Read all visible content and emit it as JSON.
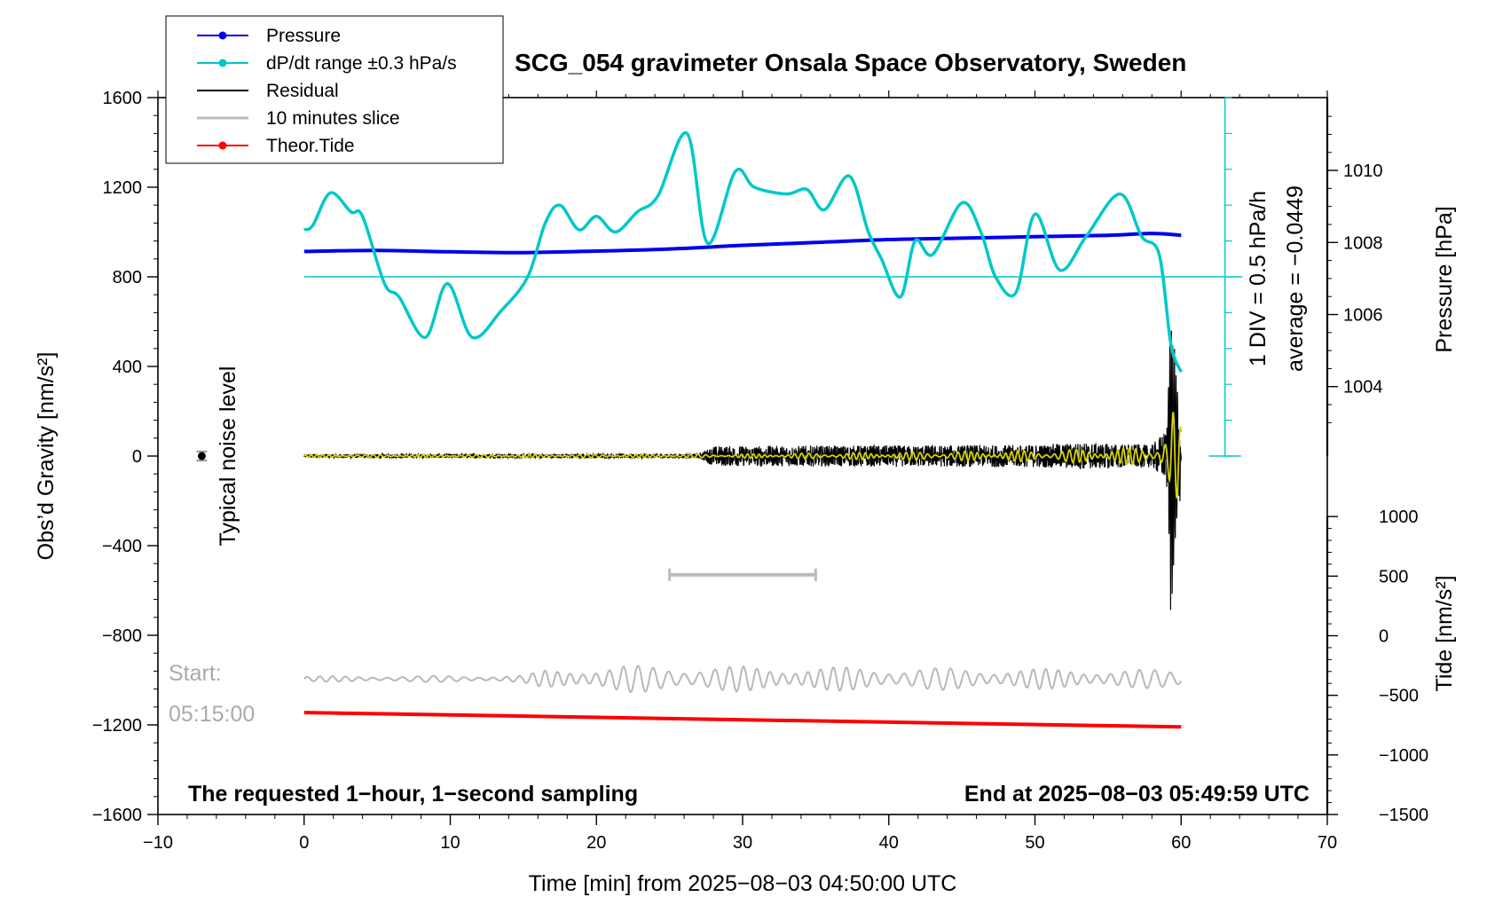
{
  "chart_data": {
    "type": "line",
    "title": "SCG_054 gravimeter Onsala Space Observatory, Sweden",
    "xlabel": "Time [min] from 2025−08−03 04:50:00 UTC",
    "ylabel_left": "Obs’d Gravity [nm/s²]",
    "ylabel_right_top": "Pressure [hPa]",
    "ylabel_right_bottom": "Tide [nm/s²]",
    "xlim": [
      -10,
      70
    ],
    "ylim_left": [
      -1600,
      1600
    ],
    "x_ticks": [
      "−10",
      "0",
      "10",
      "20",
      "30",
      "40",
      "50",
      "60",
      "70"
    ],
    "y_ticks_left": [
      "1600",
      "1200",
      "800",
      "400",
      "0",
      "−400",
      "−800",
      "−1200",
      "−1600"
    ],
    "pressure_ticks": [
      "1010",
      "1008",
      "1006",
      "1004"
    ],
    "tide_ticks": [
      "1000",
      "500",
      "0",
      "−500",
      "−1000",
      "−1500"
    ],
    "legend": [
      {
        "label": "Pressure",
        "color": "#0000ee",
        "marker": true
      },
      {
        "label": "dP/dt range ±0.3 hPa/s",
        "color": "#00c8c8",
        "marker": true
      },
      {
        "label": "Residual",
        "color": "#000000",
        "marker": false
      },
      {
        "label": "10 minutes slice",
        "color": "#bbbbbb",
        "marker": false
      },
      {
        "label": "Theor.Tide",
        "color": "#ff0000",
        "marker": true
      }
    ],
    "annotations": {
      "noise_label": "Typical noise level",
      "div_label": "1 DIV = 0.5 hPa/h",
      "average_label": "average = −0.0449",
      "start_label": "Start:",
      "start_time": "05:15:00",
      "bottom_left": "The requested 1−hour, 1−second sampling",
      "bottom_right": "End at 2025−08−03 05:49:59 UTC"
    },
    "series": [
      {
        "name": "Pressure",
        "axis": "pressure_hPa",
        "x": [
          0,
          5,
          10,
          15,
          20,
          25,
          30,
          35,
          40,
          45,
          50,
          55,
          58,
          60
        ],
        "values": [
          1007.75,
          1007.78,
          1007.74,
          1007.72,
          1007.76,
          1007.82,
          1007.92,
          1008.0,
          1008.08,
          1008.12,
          1008.16,
          1008.2,
          1008.25,
          1008.2
        ]
      },
      {
        "name": "dP/dt",
        "axis": "gravity_nm_s2",
        "x": [
          0,
          0.6,
          1.8,
          3.2,
          4.0,
          5.5,
          6.5,
          8.3,
          9.8,
          11.5,
          13.5,
          15.3,
          16.5,
          17.5,
          18.8,
          20.0,
          21.3,
          22.8,
          24.2,
          26.2,
          27.6,
          29.5,
          30.8,
          33.0,
          34.4,
          35.6,
          37.3,
          38.6,
          39.5,
          40.8,
          41.8,
          43.0,
          45.0,
          46.3,
          47.3,
          48.7,
          50.0,
          51.7,
          53.5,
          55.8,
          57.3,
          58.5,
          59.3,
          60
        ],
        "values": [
          1010,
          1030,
          1175,
          1090,
          1070,
          770,
          710,
          530,
          770,
          530,
          650,
          800,
          1040,
          1120,
          1010,
          1070,
          1000,
          1090,
          1160,
          1440,
          950,
          1270,
          1200,
          1170,
          1190,
          1100,
          1250,
          1000,
          880,
          710,
          960,
          900,
          1130,
          1000,
          800,
          730,
          1080,
          830,
          980,
          1170,
          980,
          900,
          500,
          375
        ]
      },
      {
        "name": "Residual",
        "axis": "gravity_nm_s2",
        "x": [
          0,
          27,
          28,
          50,
          53,
          58,
          59,
          59.3,
          59.6,
          60
        ],
        "envelope": [
          8,
          10,
          45,
          50,
          60,
          50,
          120,
          780,
          450,
          150
        ]
      },
      {
        "name": "Residual filtered",
        "axis": "gravity_nm_s2",
        "x": [
          0,
          28,
          50,
          58,
          59,
          59.5,
          60
        ],
        "envelope": [
          6,
          8,
          25,
          40,
          120,
          260,
          120
        ]
      },
      {
        "name": "10 minutes slice",
        "axis": "gravity_nm_s2",
        "x": [
          0,
          15,
          16.5,
          22,
          60
        ],
        "baseline": -995,
        "envelope": [
          12,
          15,
          40,
          60,
          40
        ]
      },
      {
        "name": "Theor.Tide",
        "axis": "tide_nm_s2",
        "x": [
          0,
          10,
          20,
          30,
          40,
          50,
          60
        ],
        "values": [
          -645,
          -665,
          -685,
          -705,
          -725,
          -745,
          -765
        ]
      }
    ],
    "ten_minute_slice_marker": {
      "x_start": 25,
      "x_end": 35,
      "y": -530
    },
    "noise_level": {
      "x": -7,
      "y": 0,
      "err": 20
    },
    "dpdt_reference_value": 800,
    "pressure_scale": {
      "p1010_at_gravity": 1275,
      "p1004_at_gravity": 310
    },
    "tide_scale": {
      "t1000_at_gravity": -270,
      "t_minus1500_at_gravity": -1600
    }
  }
}
